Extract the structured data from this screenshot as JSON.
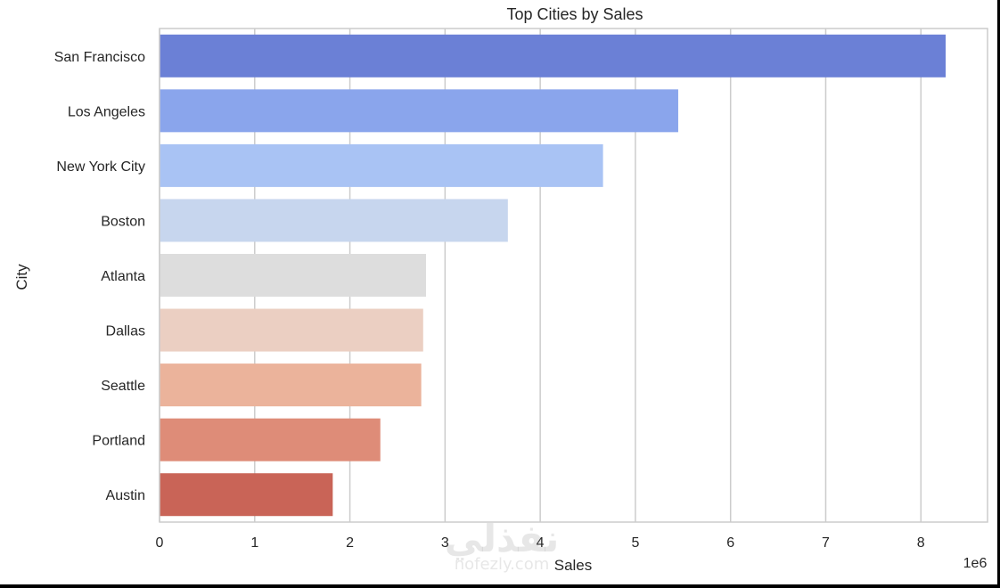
{
  "chart_data": {
    "type": "bar",
    "orientation": "horizontal",
    "title": "Top Cities by Sales",
    "xlabel": "Sales",
    "ylabel": "City",
    "x_scale_label": "1e6",
    "xlim": [
      0,
      8.7
    ],
    "x_ticks": [
      0,
      1,
      2,
      3,
      4,
      5,
      6,
      7,
      8
    ],
    "categories": [
      "San Francisco",
      "Los Angeles",
      "New York City",
      "Boston",
      "Atlanta",
      "Dallas",
      "Seattle",
      "Portland",
      "Austin"
    ],
    "values": [
      8.26,
      5.45,
      4.66,
      3.66,
      2.8,
      2.77,
      2.75,
      2.32,
      1.82
    ],
    "colors": [
      "#6b80d6",
      "#8aa5ec",
      "#a9c3f4",
      "#c7d6ee",
      "#dddddd",
      "#ebcfc2",
      "#ebb39b",
      "#de8c78",
      "#c96457"
    ],
    "grid": "x",
    "legend": "none"
  },
  "watermark": {
    "arabic": "نفذلي",
    "latin": "nofezly.com"
  }
}
